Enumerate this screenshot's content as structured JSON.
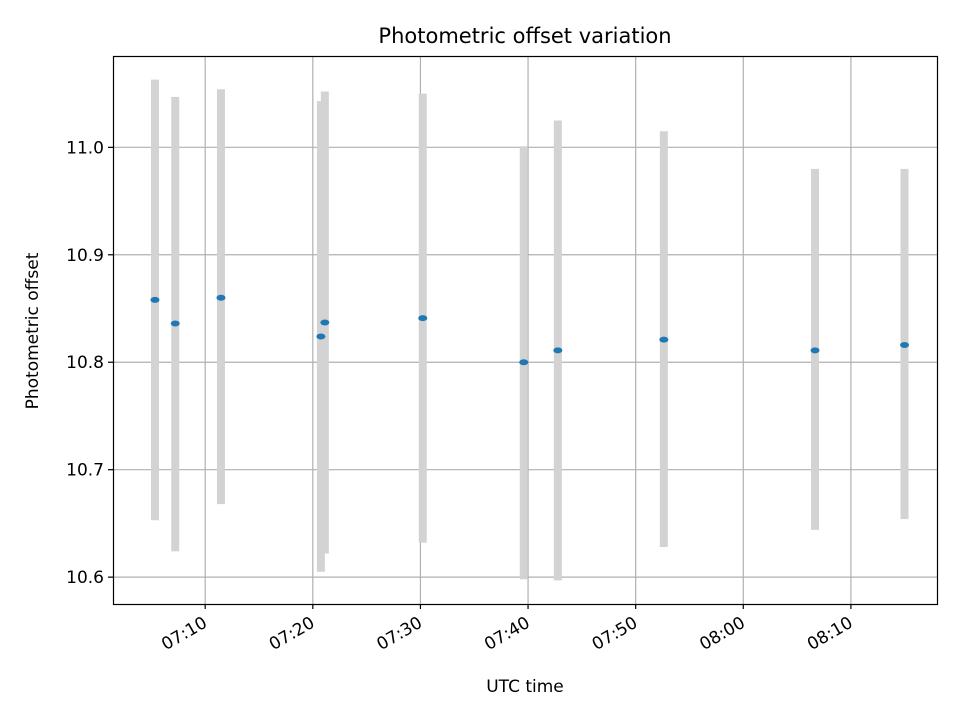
{
  "chart_data": {
    "type": "scatter",
    "title": "Photometric offset variation",
    "xlabel": "UTC time",
    "ylabel": "Photometric offset",
    "x_ticks": [
      "07:10",
      "07:20",
      "07:30",
      "07:40",
      "07:50",
      "08:00",
      "08:10"
    ],
    "y_ticks": [
      "10.6",
      "10.7",
      "10.8",
      "10.9",
      "11.0"
    ],
    "ylim": [
      10.575,
      11.085
    ],
    "xlim": [
      "07:01:26",
      "08:18:00"
    ],
    "grid": true,
    "colors": {
      "marker": "#1f77b4",
      "errorbar": "#d3d3d3"
    },
    "points": [
      {
        "time": "07:05:20",
        "y": 10.858,
        "low": 10.653,
        "high": 11.063
      },
      {
        "time": "07:07:13",
        "y": 10.836,
        "low": 10.624,
        "high": 11.047
      },
      {
        "time": "07:11:28",
        "y": 10.86,
        "low": 10.668,
        "high": 11.054
      },
      {
        "time": "07:20:45",
        "y": 10.824,
        "low": 10.605,
        "high": 11.043
      },
      {
        "time": "07:21:07",
        "y": 10.837,
        "low": 10.622,
        "high": 11.052
      },
      {
        "time": "07:30:13",
        "y": 10.841,
        "low": 10.632,
        "high": 11.05
      },
      {
        "time": "07:39:36",
        "y": 10.8,
        "low": 10.598,
        "high": 11.001
      },
      {
        "time": "07:42:46",
        "y": 10.811,
        "low": 10.597,
        "high": 11.025
      },
      {
        "time": "07:52:37",
        "y": 10.821,
        "low": 10.628,
        "high": 11.015
      },
      {
        "time": "08:06:40",
        "y": 10.811,
        "low": 10.644,
        "high": 10.98
      },
      {
        "time": "08:14:59",
        "y": 10.816,
        "low": 10.654,
        "high": 10.98
      }
    ]
  }
}
